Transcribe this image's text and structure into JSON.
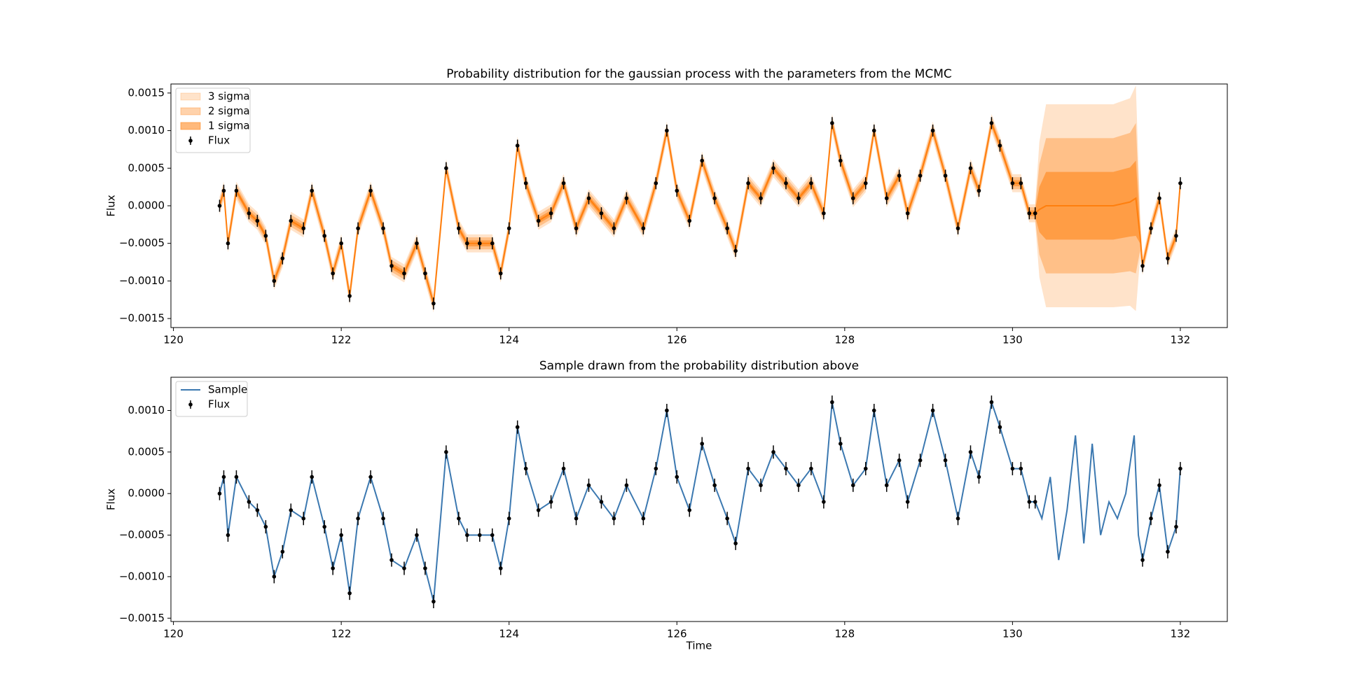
{
  "chart_data": [
    {
      "type": "gp",
      "title": "Probability distribution for the gaussian process with the parameters from the MCMC",
      "ylabel": "Flux",
      "legend": "upper left",
      "xlim": [
        119.97,
        132.56
      ],
      "xticks": [
        120,
        122,
        124,
        126,
        128,
        130,
        132
      ],
      "ylim": [
        -0.00162,
        0.00162
      ],
      "yticks": [
        0.0015,
        {
          "value": 0.001,
          "label": "0.0010"
        },
        0.0005,
        {
          "value": 0,
          "label": "0.0000"
        },
        {
          "value": -0.0005,
          "label": "−0.0005"
        },
        {
          "value": -0.001,
          "label": "−0.0010"
        },
        {
          "value": -0.0015,
          "label": "−0.0015"
        }
      ],
      "x": [
        120.55,
        120.6,
        120.65,
        120.75,
        120.9,
        121.0,
        121.1,
        121.2,
        121.3,
        121.4,
        121.55,
        121.65,
        121.8,
        121.9,
        122.0,
        122.1,
        122.2,
        122.35,
        122.5,
        122.6,
        122.75,
        122.9,
        123.0,
        123.1,
        123.25,
        123.4,
        123.5,
        123.65,
        123.8,
        123.9,
        124.0,
        124.1,
        124.2,
        124.35,
        124.5,
        124.65,
        124.8,
        124.95,
        125.1,
        125.25,
        125.4,
        125.6,
        125.75,
        125.88,
        126.0,
        126.15,
        126.3,
        126.45,
        126.6,
        126.7,
        126.85,
        127.0,
        127.15,
        127.3,
        127.45,
        127.6,
        127.75,
        127.85,
        127.95,
        128.1,
        128.25,
        128.35,
        128.5,
        128.65,
        128.75,
        128.9,
        129.05,
        129.2,
        129.35,
        129.5,
        129.6,
        129.75,
        129.85,
        130.0,
        130.1,
        130.2,
        130.27,
        130.32,
        130.4,
        130.8,
        131.2,
        131.4,
        131.47,
        131.52,
        131.55,
        131.65,
        131.75,
        131.85,
        131.95,
        132.0
      ],
      "mean": [
        0,
        0.0002,
        -0.0005,
        0.0002,
        -0.0001,
        -0.0002,
        -0.0004,
        -0.001,
        -0.0007,
        -0.0002,
        -0.0003,
        0.0002,
        -0.0004,
        -0.0009,
        -0.0005,
        -0.0012,
        -0.0003,
        0.0002,
        -0.0003,
        -0.0008,
        -0.0009,
        -0.0005,
        -0.0009,
        -0.0013,
        0.0005,
        -0.0003,
        -0.0005,
        -0.0005,
        -0.0005,
        -0.0009,
        -0.0003,
        0.0008,
        0.0003,
        -0.0002,
        -0.0001,
        0.0003,
        -0.0003,
        0.0001,
        -0.0001,
        -0.0003,
        0.0001,
        -0.0003,
        0.0003,
        0.001,
        0.0002,
        -0.0002,
        0.0006,
        0.0001,
        -0.0003,
        -0.0006,
        0.0003,
        0.0001,
        0.0005,
        0.0003,
        0.0001,
        0.0003,
        -0.0001,
        0.0011,
        0.0006,
        0.0001,
        0.0003,
        0.001,
        0.0001,
        0.0004,
        -0.0001,
        0.0004,
        0.001,
        0.0004,
        -0.0003,
        0.0005,
        0.0002,
        0.0011,
        0.0008,
        0.0003,
        0.0003,
        -0.0001,
        -0.0001,
        -5e-05,
        0,
        0,
        0,
        5e-05,
        0.0001,
        -0.0004,
        -0.0008,
        -0.0003,
        0.0001,
        -0.0007,
        -0.0004,
        0.0003
      ],
      "std": [
        4e-05,
        4e-05,
        4e-05,
        4e-05,
        4e-05,
        4e-05,
        4e-05,
        4e-05,
        4e-05,
        4e-05,
        4e-05,
        4e-05,
        4e-05,
        4e-05,
        4e-05,
        4e-05,
        4e-05,
        4e-05,
        4e-05,
        4e-05,
        4e-05,
        4e-05,
        4e-05,
        4e-05,
        4e-05,
        4e-05,
        4e-05,
        4e-05,
        4e-05,
        4e-05,
        4e-05,
        4e-05,
        4e-05,
        4e-05,
        4e-05,
        4e-05,
        4e-05,
        4e-05,
        4e-05,
        4e-05,
        4e-05,
        4e-05,
        4e-05,
        4e-05,
        4e-05,
        4e-05,
        4e-05,
        4e-05,
        4e-05,
        4e-05,
        4e-05,
        4e-05,
        4e-05,
        4e-05,
        4e-05,
        4e-05,
        4e-05,
        4e-05,
        4e-05,
        4e-05,
        4e-05,
        4e-05,
        4e-05,
        4e-05,
        4e-05,
        4e-05,
        4e-05,
        4e-05,
        4e-05,
        4e-05,
        4e-05,
        4e-05,
        4e-05,
        4e-05,
        4e-05,
        4e-05,
        4e-05,
        0.0003,
        0.00045,
        0.00045,
        0.00045,
        0.00046,
        0.0005,
        0.0001,
        4e-05,
        4e-05,
        4e-05,
        4e-05,
        4e-05,
        4e-05
      ],
      "series": [
        {
          "name": "3 sigma",
          "type": "band",
          "sigma": 3,
          "color": "#ff7f0e",
          "alpha": 0.22
        },
        {
          "name": "2 sigma",
          "type": "band",
          "sigma": 2,
          "color": "#ff7f0e",
          "alpha": 0.35
        },
        {
          "name": "1 sigma",
          "type": "band",
          "sigma": 1,
          "color": "#ff7f0e",
          "alpha": 0.55
        },
        {
          "name": "Flux",
          "type": "errorbar",
          "color": "#000000",
          "error": 8e-05,
          "x": [
            120.55,
            120.6,
            120.65,
            120.75,
            120.9,
            121.0,
            121.1,
            121.2,
            121.3,
            121.4,
            121.55,
            121.65,
            121.8,
            121.9,
            122.0,
            122.1,
            122.2,
            122.35,
            122.5,
            122.6,
            122.75,
            122.9,
            123.0,
            123.1,
            123.25,
            123.4,
            123.5,
            123.65,
            123.8,
            123.9,
            124.0,
            124.1,
            124.2,
            124.35,
            124.5,
            124.65,
            124.8,
            124.95,
            125.1,
            125.25,
            125.4,
            125.6,
            125.75,
            125.88,
            126.0,
            126.15,
            126.3,
            126.45,
            126.6,
            126.7,
            126.85,
            127.0,
            127.15,
            127.3,
            127.45,
            127.6,
            127.75,
            127.85,
            127.95,
            128.1,
            128.25,
            128.35,
            128.5,
            128.65,
            128.75,
            128.9,
            129.05,
            129.2,
            129.35,
            129.5,
            129.6,
            129.75,
            129.85,
            130.0,
            130.1,
            130.2,
            130.27,
            131.55,
            131.65,
            131.75,
            131.85,
            131.95,
            132.0
          ],
          "values": [
            0,
            0.0002,
            -0.0005,
            0.0002,
            -0.0001,
            -0.0002,
            -0.0004,
            -0.001,
            -0.0007,
            -0.0002,
            -0.0003,
            0.0002,
            -0.0004,
            -0.0009,
            -0.0005,
            -0.0012,
            -0.0003,
            0.0002,
            -0.0003,
            -0.0008,
            -0.0009,
            -0.0005,
            -0.0009,
            -0.0013,
            0.0005,
            -0.0003,
            -0.0005,
            -0.0005,
            -0.0005,
            -0.0009,
            -0.0003,
            0.0008,
            0.0003,
            -0.0002,
            -0.0001,
            0.0003,
            -0.0003,
            0.0001,
            -0.0001,
            -0.0003,
            0.0001,
            -0.0003,
            0.0003,
            0.001,
            0.0002,
            -0.0002,
            0.0006,
            0.0001,
            -0.0003,
            -0.0006,
            0.0003,
            0.0001,
            0.0005,
            0.0003,
            0.0001,
            0.0003,
            -0.0001,
            0.0011,
            0.0006,
            0.0001,
            0.0003,
            0.001,
            0.0001,
            0.0004,
            -0.0001,
            0.0004,
            0.001,
            0.0004,
            -0.0003,
            0.0005,
            0.0002,
            0.0011,
            0.0008,
            0.0003,
            0.0003,
            -0.0001,
            -0.0001,
            -0.0008,
            -0.0003,
            0.0001,
            -0.0007,
            -0.0004,
            0.0003
          ]
        }
      ]
    },
    {
      "type": "line",
      "title": "Sample drawn from the probability distribution above",
      "xlabel": "Time",
      "ylabel": "Flux",
      "legend": "upper left",
      "xlim": [
        119.97,
        132.56
      ],
      "xticks": [
        120,
        122,
        124,
        126,
        128,
        130,
        132
      ],
      "ylim": [
        -0.00154,
        0.0014
      ],
      "yticks": [
        {
          "value": 0.001,
          "label": "0.0010"
        },
        0.0005,
        {
          "value": 0,
          "label": "0.0000"
        },
        {
          "value": -0.0005,
          "label": "−0.0005"
        },
        {
          "value": -0.001,
          "label": "−0.0010"
        },
        {
          "value": -0.0015,
          "label": "−0.0015"
        }
      ],
      "series": [
        {
          "name": "Sample",
          "type": "line",
          "color": "#3b78b0",
          "x": [
            120.55,
            120.6,
            120.65,
            120.75,
            120.9,
            121.0,
            121.1,
            121.2,
            121.3,
            121.4,
            121.55,
            121.65,
            121.8,
            121.9,
            122.0,
            122.1,
            122.2,
            122.35,
            122.5,
            122.6,
            122.75,
            122.9,
            123.0,
            123.1,
            123.25,
            123.4,
            123.5,
            123.65,
            123.8,
            123.9,
            124.0,
            124.1,
            124.2,
            124.35,
            124.5,
            124.65,
            124.8,
            124.95,
            125.1,
            125.25,
            125.4,
            125.6,
            125.75,
            125.88,
            126.0,
            126.15,
            126.3,
            126.45,
            126.6,
            126.7,
            126.85,
            127.0,
            127.15,
            127.3,
            127.45,
            127.6,
            127.75,
            127.85,
            127.95,
            128.1,
            128.25,
            128.35,
            128.5,
            128.65,
            128.75,
            128.9,
            129.05,
            129.2,
            129.35,
            129.5,
            129.6,
            129.75,
            129.85,
            130.0,
            130.1,
            130.2,
            130.27,
            130.35,
            130.45,
            130.55,
            130.65,
            130.75,
            130.85,
            130.95,
            131.05,
            131.15,
            131.25,
            131.35,
            131.45,
            131.5,
            131.55,
            131.65,
            131.75,
            131.85,
            131.95,
            132.0
          ],
          "values": [
            0,
            0.0002,
            -0.0005,
            0.0002,
            -0.0001,
            -0.0002,
            -0.0004,
            -0.001,
            -0.0007,
            -0.0002,
            -0.0003,
            0.0002,
            -0.0004,
            -0.0009,
            -0.0005,
            -0.0012,
            -0.0003,
            0.0002,
            -0.0003,
            -0.0008,
            -0.0009,
            -0.0005,
            -0.0009,
            -0.0013,
            0.0005,
            -0.0003,
            -0.0005,
            -0.0005,
            -0.0005,
            -0.0009,
            -0.0003,
            0.0008,
            0.0003,
            -0.0002,
            -0.0001,
            0.0003,
            -0.0003,
            0.0001,
            -0.0001,
            -0.0003,
            0.0001,
            -0.0003,
            0.0003,
            0.001,
            0.0002,
            -0.0002,
            0.0006,
            0.0001,
            -0.0003,
            -0.0006,
            0.0003,
            0.0001,
            0.0005,
            0.0003,
            0.0001,
            0.0003,
            -0.0001,
            0.0011,
            0.0006,
            0.0001,
            0.0003,
            0.001,
            0.0001,
            0.0004,
            -0.0001,
            0.0004,
            0.001,
            0.0004,
            -0.0003,
            0.0005,
            0.0002,
            0.0011,
            0.0008,
            0.0003,
            0.0003,
            -0.0001,
            -0.0001,
            -0.0003,
            0.0002,
            -0.0008,
            -0.0002,
            0.0007,
            -0.0006,
            0.0006,
            -0.0005,
            -0.0001,
            -0.0003,
            0,
            0.0007,
            -0.0005,
            -0.0008,
            -0.0003,
            0.0001,
            -0.0007,
            -0.0004,
            0.0003
          ]
        },
        {
          "name": "Flux",
          "type": "errorbar",
          "color": "#000000",
          "error": 8e-05,
          "x": [
            120.55,
            120.6,
            120.65,
            120.75,
            120.9,
            121.0,
            121.1,
            121.2,
            121.3,
            121.4,
            121.55,
            121.65,
            121.8,
            121.9,
            122.0,
            122.1,
            122.2,
            122.35,
            122.5,
            122.6,
            122.75,
            122.9,
            123.0,
            123.1,
            123.25,
            123.4,
            123.5,
            123.65,
            123.8,
            123.9,
            124.0,
            124.1,
            124.2,
            124.35,
            124.5,
            124.65,
            124.8,
            124.95,
            125.1,
            125.25,
            125.4,
            125.6,
            125.75,
            125.88,
            126.0,
            126.15,
            126.3,
            126.45,
            126.6,
            126.7,
            126.85,
            127.0,
            127.15,
            127.3,
            127.45,
            127.6,
            127.75,
            127.85,
            127.95,
            128.1,
            128.25,
            128.35,
            128.5,
            128.65,
            128.75,
            128.9,
            129.05,
            129.2,
            129.35,
            129.5,
            129.6,
            129.75,
            129.85,
            130.0,
            130.1,
            130.2,
            130.27,
            131.55,
            131.65,
            131.75,
            131.85,
            131.95,
            132.0
          ],
          "values": [
            0,
            0.0002,
            -0.0005,
            0.0002,
            -0.0001,
            -0.0002,
            -0.0004,
            -0.001,
            -0.0007,
            -0.0002,
            -0.0003,
            0.0002,
            -0.0004,
            -0.0009,
            -0.0005,
            -0.0012,
            -0.0003,
            0.0002,
            -0.0003,
            -0.0008,
            -0.0009,
            -0.0005,
            -0.0009,
            -0.0013,
            0.0005,
            -0.0003,
            -0.0005,
            -0.0005,
            -0.0005,
            -0.0009,
            -0.0003,
            0.0008,
            0.0003,
            -0.0002,
            -0.0001,
            0.0003,
            -0.0003,
            0.0001,
            -0.0001,
            -0.0003,
            0.0001,
            -0.0003,
            0.0003,
            0.001,
            0.0002,
            -0.0002,
            0.0006,
            0.0001,
            -0.0003,
            -0.0006,
            0.0003,
            0.0001,
            0.0005,
            0.0003,
            0.0001,
            0.0003,
            -0.0001,
            0.0011,
            0.0006,
            0.0001,
            0.0003,
            0.001,
            0.0001,
            0.0004,
            -0.0001,
            0.0004,
            0.001,
            0.0004,
            -0.0003,
            0.0005,
            0.0002,
            0.0011,
            0.0008,
            0.0003,
            0.0003,
            -0.0001,
            -0.0001,
            -0.0008,
            -0.0003,
            0.0001,
            -0.0007,
            -0.0004,
            0.0003
          ]
        }
      ]
    }
  ]
}
